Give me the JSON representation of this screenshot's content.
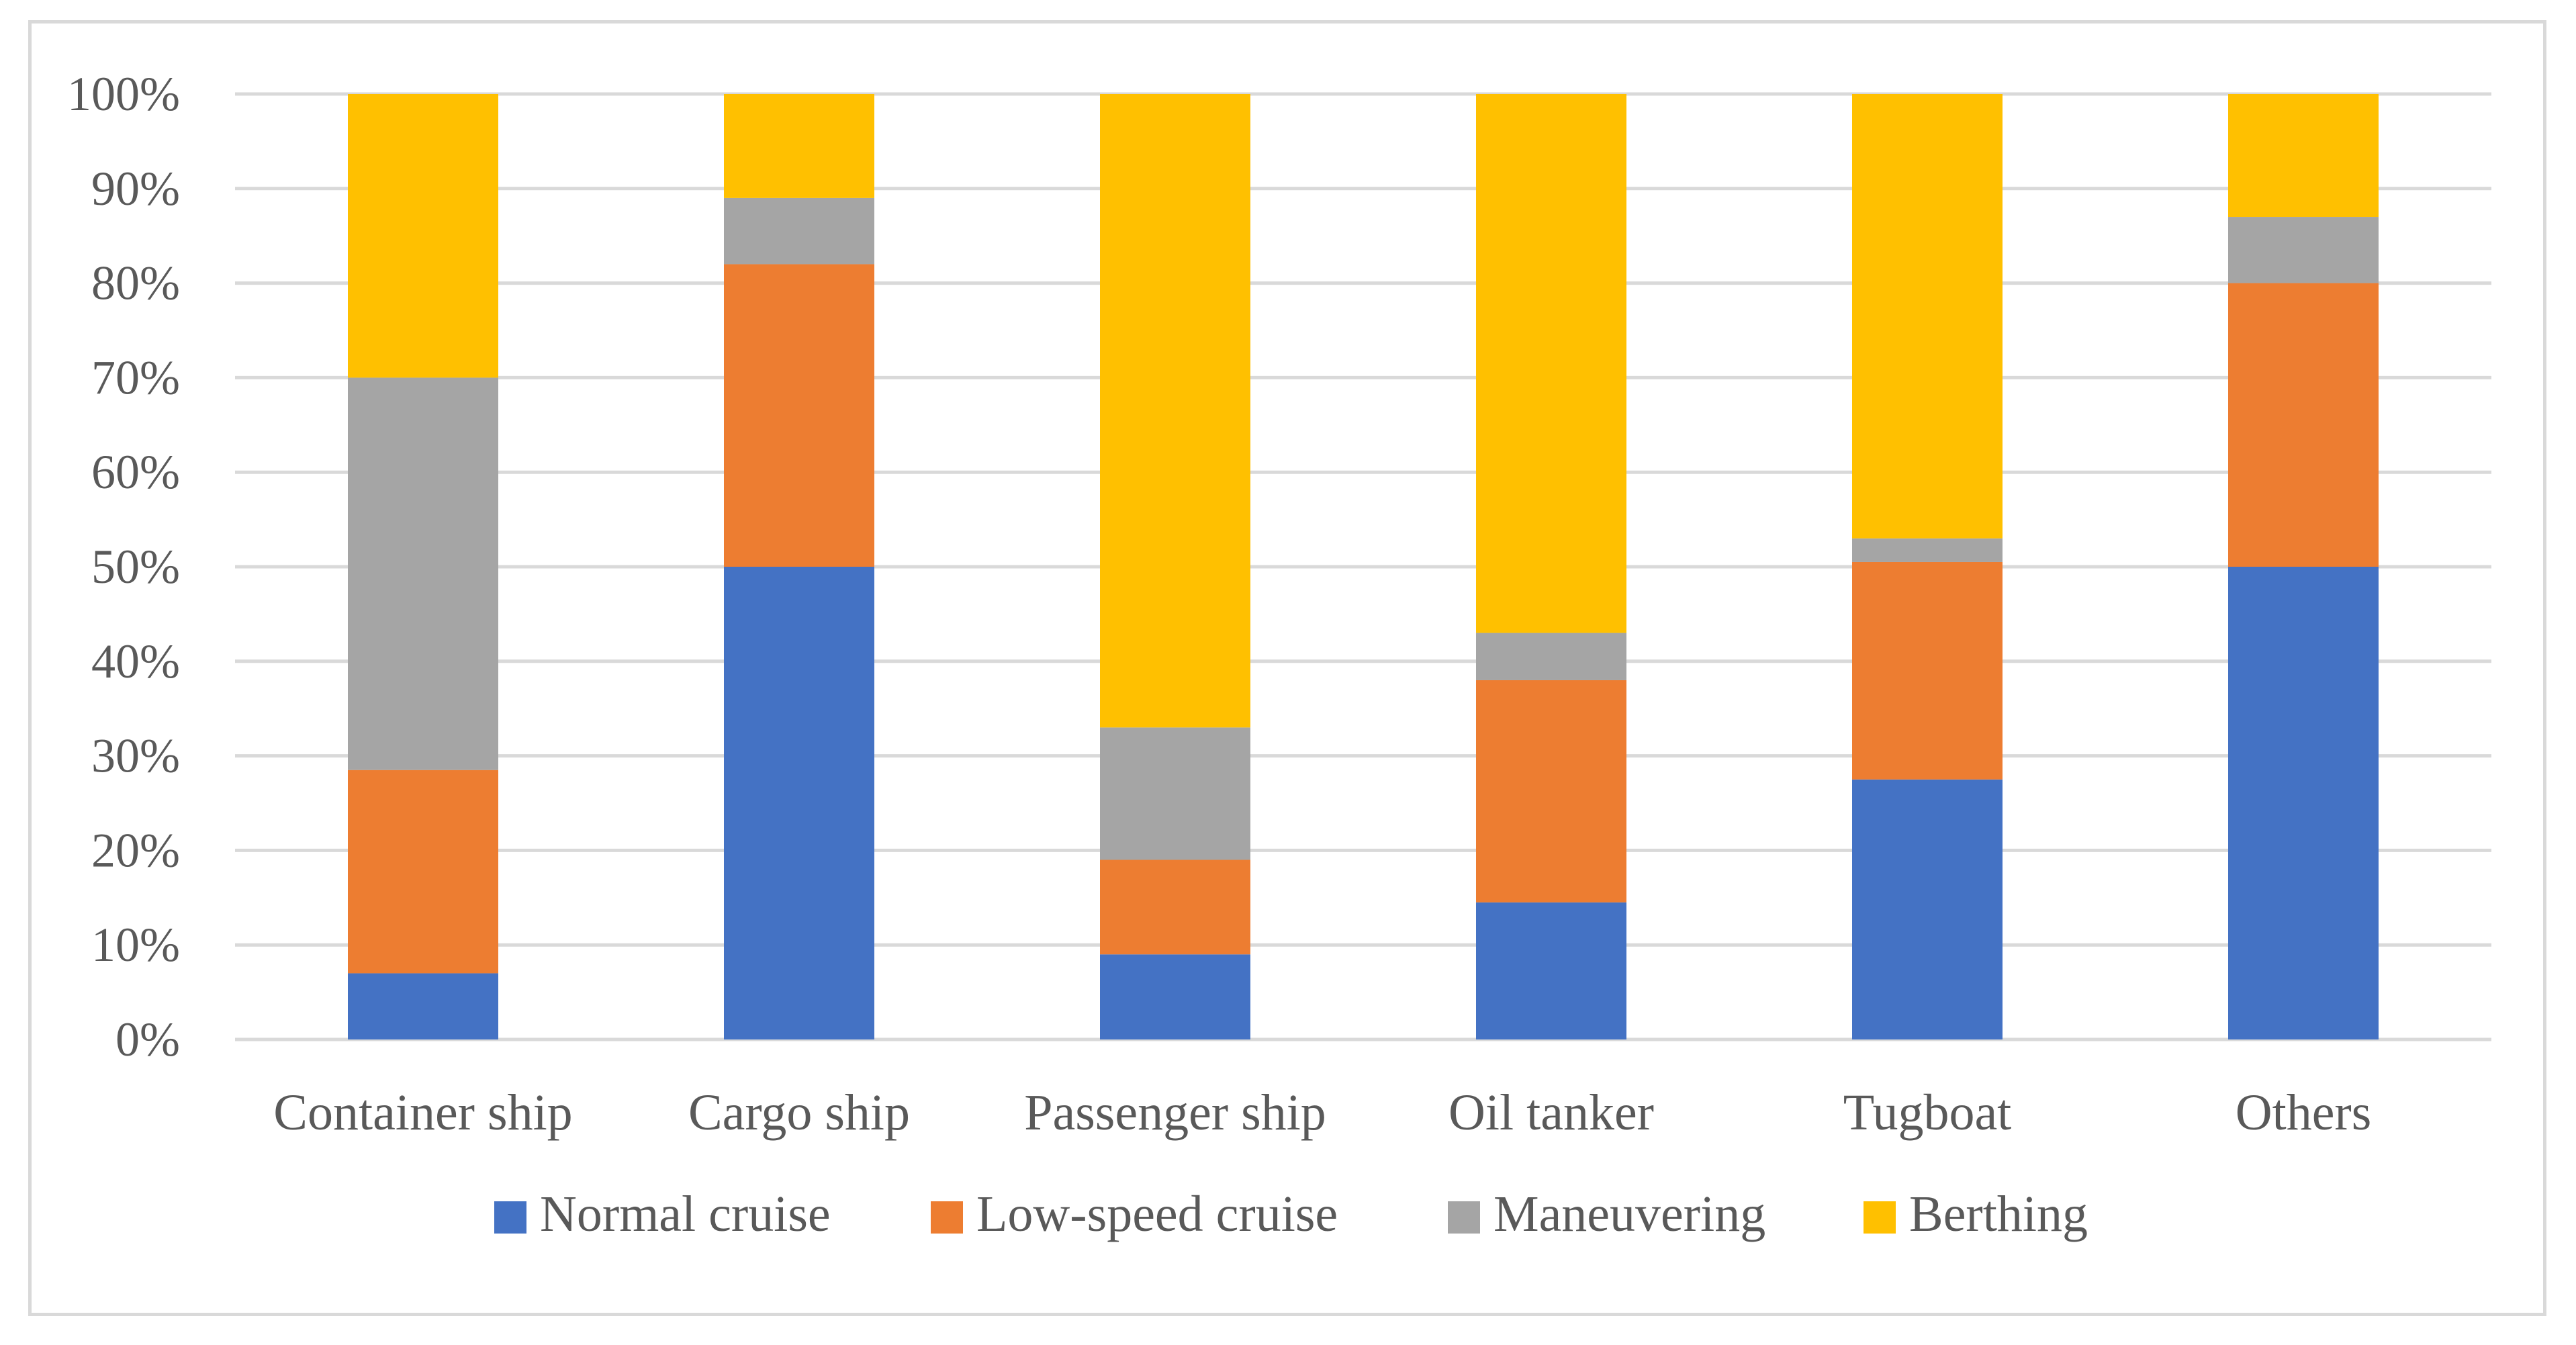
{
  "chart_data": {
    "type": "bar",
    "stacked": true,
    "percent": true,
    "title": "",
    "xlabel": "",
    "ylabel": "",
    "ylim": [
      0,
      100
    ],
    "yticks": [
      "0%",
      "10%",
      "20%",
      "30%",
      "40%",
      "50%",
      "60%",
      "70%",
      "80%",
      "90%",
      "100%"
    ],
    "categories": [
      "Container ship",
      "Cargo ship",
      "Passenger ship",
      "Oil tanker",
      "Tugboat",
      "Others"
    ],
    "series": [
      {
        "name": "Normal cruise",
        "color": "#4472C4",
        "values": [
          7,
          50,
          9,
          14.5,
          27.5,
          50
        ]
      },
      {
        "name": "Low-speed cruise",
        "color": "#ED7D31",
        "values": [
          21.5,
          32,
          10,
          23.5,
          23,
          30
        ]
      },
      {
        "name": "Maneuvering",
        "color": "#A5A5A5",
        "values": [
          41.5,
          7,
          14,
          5,
          2.5,
          7
        ]
      },
      {
        "name": "Berthing",
        "color": "#FFC000",
        "values": [
          30,
          11,
          67,
          57,
          47,
          13
        ]
      }
    ],
    "grid": true,
    "legend_position": "bottom"
  }
}
